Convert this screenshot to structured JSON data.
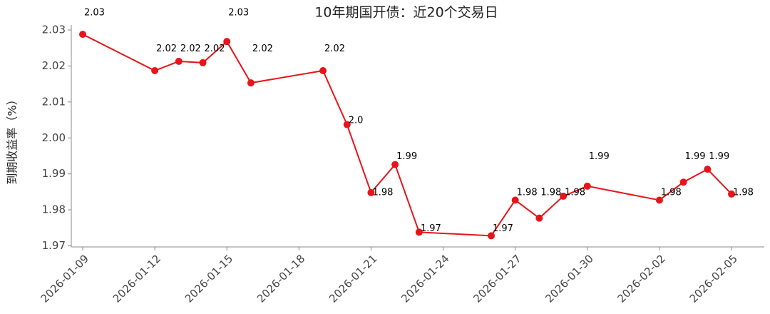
{
  "chart_data": {
    "type": "line",
    "title": "10年期国开债：近20个交易日",
    "y_label": "到期收益率（%）",
    "x": [
      "2026-01-09",
      "2026-01-12",
      "2026-01-13",
      "2026-01-14",
      "2026-01-15",
      "2026-01-16",
      "2026-01-19",
      "2026-01-20",
      "2026-01-21",
      "2026-01-22",
      "2026-01-23",
      "2026-01-26",
      "2026-01-27",
      "2026-01-28",
      "2026-01-29",
      "2026-01-30",
      "2026-02-02",
      "2026-02-03",
      "2026-02-04",
      "2026-02-05"
    ],
    "series": [
      {
        "color": "#e8141a",
        "values": [
          2.0288,
          2.0187,
          2.0213,
          2.0209,
          2.0268,
          2.0153,
          2.0187,
          2.0037,
          1.9848,
          1.9926,
          1.9738,
          1.9728,
          1.9827,
          1.9777,
          1.9838,
          1.9866,
          1.9827,
          1.9877,
          1.9913,
          1.9844
        ],
        "value_labels": [
          "2.03",
          "2.02",
          "2.02",
          "2.02",
          "2.03",
          "2.02",
          "2.02",
          "2.0",
          "1.98",
          "1.99",
          "1.97",
          "1.97",
          "1.98",
          "1.98",
          "1.98",
          "1.99",
          "1.98",
          "1.99",
          "1.99",
          "1.98"
        ]
      }
    ],
    "ylim": [
      1.9697,
      2.0314
    ],
    "yticks": [
      1.97,
      1.98,
      1.99,
      {
        "value": 2,
        "label": "2.00"
      },
      2.01,
      2.02,
      2.03
    ],
    "xticks": [
      "2026-01-09",
      "2026-01-12",
      "2026-01-15",
      "2026-01-18",
      "2026-01-21",
      "2026-01-24",
      "2026-01-27",
      "2026-01-30",
      "2026-02-02",
      "2026-02-05"
    ]
  }
}
